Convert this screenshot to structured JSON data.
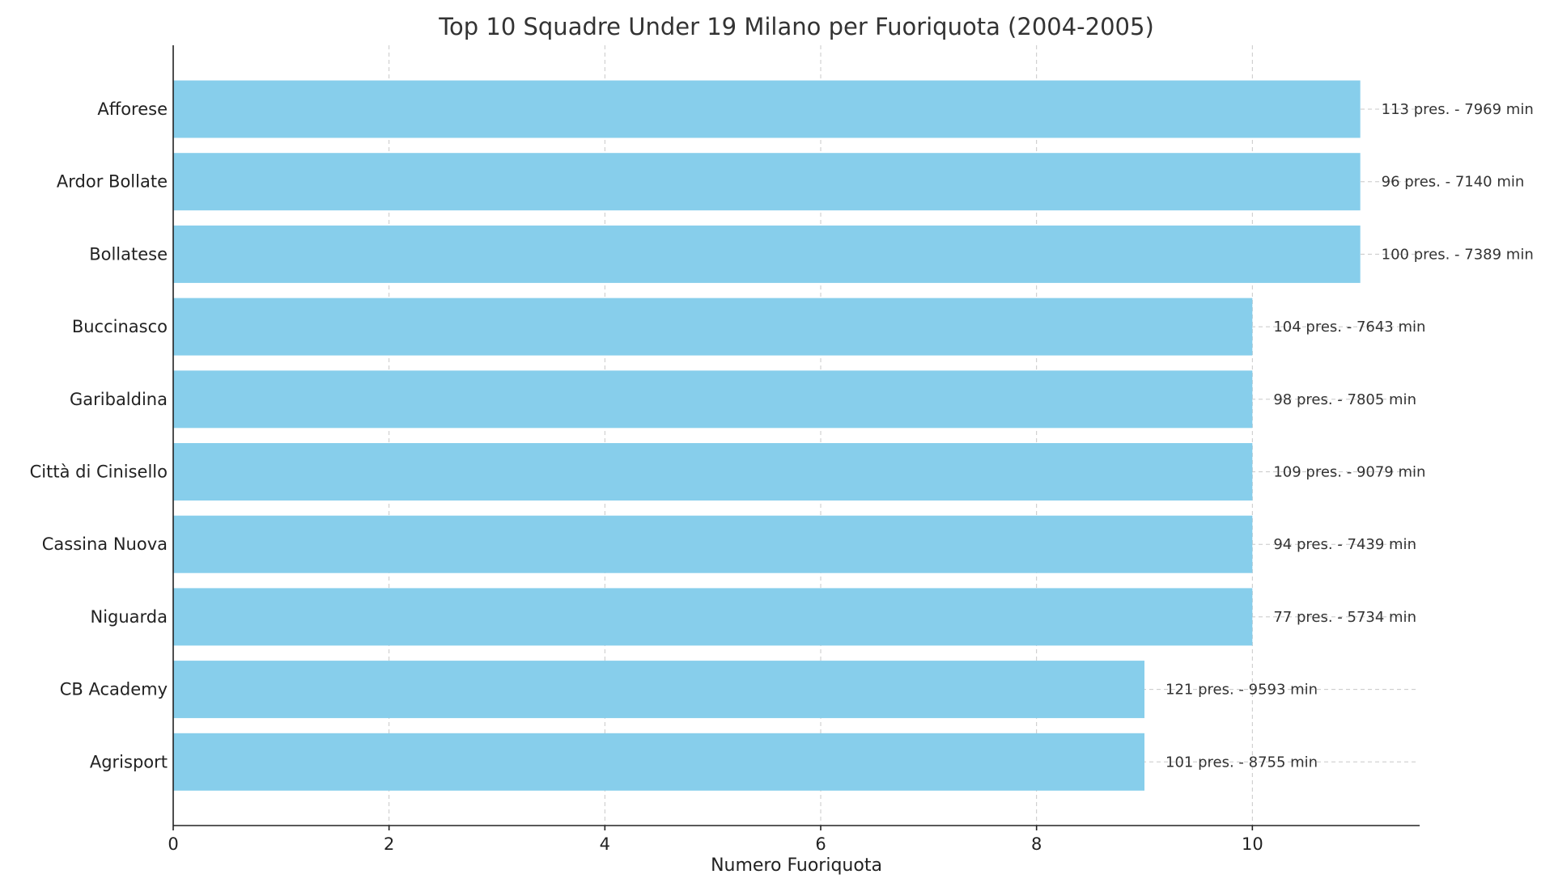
{
  "chart_data": {
    "type": "bar",
    "orientation": "horizontal",
    "title": "Top 10 Squadre Under 19 Milano per Fuoriquota (2004-2005)",
    "xlabel": "Numero Fuoriquota",
    "ylabel": "",
    "xlim": [
      0,
      11.55
    ],
    "xticks": [
      0,
      2,
      4,
      6,
      8,
      10
    ],
    "grid": true,
    "bar_color": "#87ceeb",
    "categories": [
      "Afforese",
      "Ardor Bollate",
      "Bollatese",
      "Buccinasco",
      "Garibaldina",
      "Città di Cinisello",
      "Cassina Nuova",
      "Niguarda",
      "CB Academy",
      "Agrisport"
    ],
    "values": [
      11,
      11,
      11,
      10,
      10,
      10,
      10,
      10,
      9,
      9
    ],
    "data_labels": [
      "113 pres. - 7969 min",
      "96 pres. - 7140 min",
      "100 pres. - 7389 min",
      "104 pres. - 7643 min",
      "98 pres. - 7805 min",
      "109 pres. - 9079 min",
      "94 pres. - 7439 min",
      "77 pres. - 5734 min",
      "121 pres. - 9593 min",
      "101 pres. - 8755 min"
    ]
  }
}
